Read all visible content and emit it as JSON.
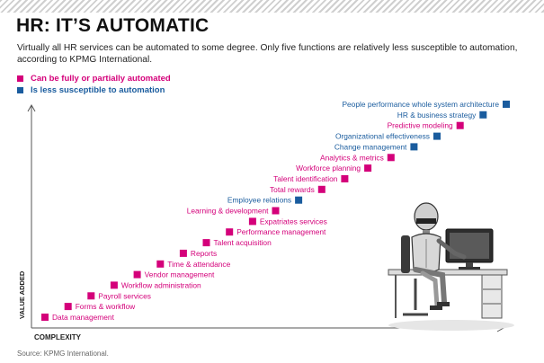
{
  "header": {
    "title": "HR: IT’S AUTOMATIC",
    "subtitle": "Virtually all HR services can be automated to some degree. Only five functions are relatively less susceptible to automation, according to KPMG International.",
    "source": "Source: KPMG International."
  },
  "colors": {
    "automated": "#d4007a",
    "less_susceptible": "#1a5c9e",
    "axis": "#555555"
  },
  "chart_data": {
    "type": "scatter",
    "xlabel": "COMPLEXITY",
    "ylabel": "VALUE ADDED",
    "legend": [
      {
        "key": "automated",
        "label": "Can be fully or partially automated"
      },
      {
        "key": "less_susceptible",
        "label": "Is less susceptible to automation"
      }
    ],
    "points": [
      {
        "label": "Data management",
        "category": "automated"
      },
      {
        "label": "Forms & workflow",
        "category": "automated"
      },
      {
        "label": "Payroll services",
        "category": "automated"
      },
      {
        "label": "Workflow administration",
        "category": "automated"
      },
      {
        "label": "Vendor management",
        "category": "automated"
      },
      {
        "label": "Time & attendance",
        "category": "automated"
      },
      {
        "label": "Reports",
        "category": "automated"
      },
      {
        "label": "Talent acquisition",
        "category": "automated"
      },
      {
        "label": "Performance management",
        "category": "automated"
      },
      {
        "label": "Expatriates services",
        "category": "automated"
      },
      {
        "label": "Learning & development",
        "category": "automated"
      },
      {
        "label": "Employee relations",
        "category": "less_susceptible"
      },
      {
        "label": "Total rewards",
        "category": "automated"
      },
      {
        "label": "Talent identification",
        "category": "automated"
      },
      {
        "label": "Workforce planning",
        "category": "automated"
      },
      {
        "label": "Analytics & metrics",
        "category": "automated"
      },
      {
        "label": "Change management",
        "category": "less_susceptible"
      },
      {
        "label": "Organizational effectiveness",
        "category": "less_susceptible"
      },
      {
        "label": "Predictive modeling",
        "category": "automated"
      },
      {
        "label": "HR & business strategy",
        "category": "less_susceptible"
      },
      {
        "label": "People performance whole system architecture",
        "category": "less_susceptible"
      }
    ]
  }
}
